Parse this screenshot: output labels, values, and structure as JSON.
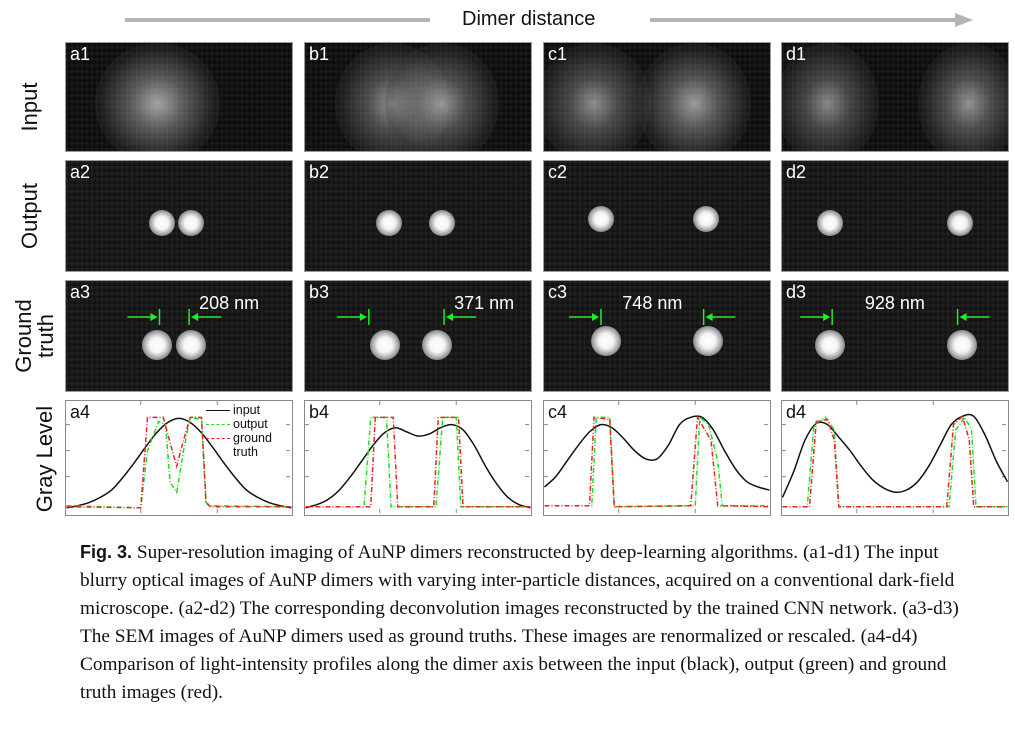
{
  "header": {
    "title": "Dimer distance"
  },
  "row_labels": {
    "input": "Input",
    "output": "Output",
    "ground_line1": "Ground",
    "ground_line2": "truth",
    "gray": "Gray Level"
  },
  "panels": {
    "a1": "a1",
    "b1": "b1",
    "c1": "c1",
    "d1": "d1",
    "a2": "a2",
    "b2": "b2",
    "c2": "c2",
    "d2": "d2",
    "a3": "a3",
    "b3": "b3",
    "c3": "c3",
    "d3": "d3",
    "a4": "a4",
    "b4": "b4",
    "c4": "c4",
    "d4": "d4"
  },
  "distances": {
    "a": "208 nm",
    "b": "371 nm",
    "c": "748 nm",
    "d": "928 nm"
  },
  "legend": {
    "input": "input",
    "output": "output",
    "ground1": "ground",
    "ground2": "truth"
  },
  "colors": {
    "input": "#111111",
    "output": "#22dd22",
    "ground_truth": "#ee2222",
    "annotation": "#22ee22"
  },
  "chart_data": [
    {
      "type": "line",
      "panel": "a4",
      "ylabel": "Gray Level",
      "xlim": [
        0,
        1
      ],
      "ylim": [
        0,
        1
      ],
      "series": [
        {
          "name": "input",
          "x_step": 0.05,
          "values": [
            0.05,
            0.07,
            0.1,
            0.15,
            0.22,
            0.34,
            0.48,
            0.63,
            0.77,
            0.87,
            0.91,
            0.87,
            0.77,
            0.63,
            0.48,
            0.34,
            0.22,
            0.15,
            0.1,
            0.07,
            0.05
          ]
        },
        {
          "name": "output",
          "points": [
            [
              0,
              0.07
            ],
            [
              0.33,
              0.05
            ],
            [
              0.36,
              0.6
            ],
            [
              0.41,
              0.88
            ],
            [
              0.44,
              0.85
            ],
            [
              0.46,
              0.3
            ],
            [
              0.49,
              0.2
            ],
            [
              0.52,
              0.6
            ],
            [
              0.55,
              0.92
            ],
            [
              0.6,
              0.9
            ],
            [
              0.62,
              0.1
            ],
            [
              0.64,
              0.07
            ],
            [
              1,
              0.06
            ]
          ]
        },
        {
          "name": "ground truth",
          "points": [
            [
              0,
              0.06
            ],
            [
              0.33,
              0.05
            ],
            [
              0.36,
              0.92
            ],
            [
              0.43,
              0.92
            ],
            [
              0.47,
              0.6
            ],
            [
              0.49,
              0.45
            ],
            [
              0.52,
              0.7
            ],
            [
              0.55,
              0.92
            ],
            [
              0.6,
              0.92
            ],
            [
              0.62,
              0.1
            ],
            [
              0.64,
              0.06
            ],
            [
              1,
              0.06
            ]
          ]
        }
      ]
    },
    {
      "type": "line",
      "panel": "b4",
      "xlim": [
        0,
        1
      ],
      "ylim": [
        0,
        1
      ],
      "series": [
        {
          "name": "input",
          "x_step": 0.05,
          "values": [
            0.05,
            0.08,
            0.13,
            0.22,
            0.35,
            0.5,
            0.65,
            0.77,
            0.82,
            0.78,
            0.74,
            0.76,
            0.82,
            0.85,
            0.8,
            0.65,
            0.45,
            0.28,
            0.15,
            0.08,
            0.05
          ]
        },
        {
          "name": "output",
          "points": [
            [
              0,
              0.06
            ],
            [
              0.26,
              0.06
            ],
            [
              0.29,
              0.92
            ],
            [
              0.36,
              0.92
            ],
            [
              0.38,
              0.06
            ],
            [
              0.58,
              0.06
            ],
            [
              0.61,
              0.92
            ],
            [
              0.67,
              0.92
            ],
            [
              0.69,
              0.06
            ],
            [
              1,
              0.06
            ]
          ]
        },
        {
          "name": "ground truth",
          "points": [
            [
              0,
              0.06
            ],
            [
              0.29,
              0.06
            ],
            [
              0.31,
              0.92
            ],
            [
              0.39,
              0.92
            ],
            [
              0.41,
              0.06
            ],
            [
              0.57,
              0.06
            ],
            [
              0.59,
              0.92
            ],
            [
              0.68,
              0.92
            ],
            [
              0.7,
              0.06
            ],
            [
              1,
              0.06
            ]
          ]
        }
      ]
    },
    {
      "type": "line",
      "panel": "c4",
      "xlim": [
        0,
        1
      ],
      "ylim": [
        0,
        1
      ],
      "series": [
        {
          "name": "input",
          "x_step": 0.05,
          "values": [
            0.25,
            0.35,
            0.5,
            0.65,
            0.78,
            0.85,
            0.82,
            0.72,
            0.6,
            0.52,
            0.52,
            0.65,
            0.85,
            0.92,
            0.92,
            0.8,
            0.6,
            0.42,
            0.3,
            0.25,
            0.22
          ]
        },
        {
          "name": "output",
          "points": [
            [
              0,
              0.07
            ],
            [
              0.21,
              0.07
            ],
            [
              0.23,
              0.92
            ],
            [
              0.29,
              0.92
            ],
            [
              0.31,
              0.06
            ],
            [
              0.67,
              0.07
            ],
            [
              0.69,
              0.92
            ],
            [
              0.73,
              0.85
            ],
            [
              0.77,
              0.5
            ],
            [
              0.79,
              0.07
            ],
            [
              1,
              0.07
            ]
          ]
        },
        {
          "name": "ground truth",
          "points": [
            [
              0,
              0.07
            ],
            [
              0.2,
              0.07
            ],
            [
              0.22,
              0.92
            ],
            [
              0.29,
              0.9
            ],
            [
              0.31,
              0.06
            ],
            [
              0.65,
              0.07
            ],
            [
              0.68,
              0.92
            ],
            [
              0.74,
              0.7
            ],
            [
              0.77,
              0.07
            ],
            [
              1,
              0.06
            ]
          ]
        }
      ]
    },
    {
      "type": "line",
      "panel": "d4",
      "xlim": [
        0,
        1
      ],
      "ylim": [
        0,
        1
      ],
      "series": [
        {
          "name": "input",
          "x_step": 0.05,
          "values": [
            0.15,
            0.4,
            0.7,
            0.86,
            0.85,
            0.73,
            0.6,
            0.45,
            0.32,
            0.24,
            0.2,
            0.22,
            0.3,
            0.45,
            0.65,
            0.85,
            0.93,
            0.93,
            0.75,
            0.5,
            0.3
          ]
        },
        {
          "name": "output",
          "points": [
            [
              0,
              0.06
            ],
            [
              0.11,
              0.06
            ],
            [
              0.14,
              0.85
            ],
            [
              0.19,
              0.92
            ],
            [
              0.23,
              0.8
            ],
            [
              0.25,
              0.06
            ],
            [
              0.74,
              0.06
            ],
            [
              0.77,
              0.8
            ],
            [
              0.81,
              0.92
            ],
            [
              0.84,
              0.8
            ],
            [
              0.86,
              0.06
            ],
            [
              1,
              0.06
            ]
          ]
        },
        {
          "name": "ground truth",
          "points": [
            [
              0,
              0.06
            ],
            [
              0.12,
              0.06
            ],
            [
              0.15,
              0.88
            ],
            [
              0.2,
              0.9
            ],
            [
              0.23,
              0.7
            ],
            [
              0.25,
              0.06
            ],
            [
              0.73,
              0.06
            ],
            [
              0.76,
              0.85
            ],
            [
              0.8,
              0.93
            ],
            [
              0.83,
              0.7
            ],
            [
              0.85,
              0.06
            ],
            [
              1,
              0.06
            ]
          ]
        }
      ]
    }
  ],
  "caption": {
    "fig_no": "Fig. 3.",
    "text": "Super-resolution imaging of AuNP dimers reconstructed by deep-learning algorithms. (a1-d1) The input blurry optical images of AuNP dimers with varying inter-particle distances, acquired on a conventional dark-field microscope. (a2-d2) The corresponding deconvolution images reconstructed by the trained CNN network. (a3-d3) The SEM images of AuNP dimers used as ground truths. These images are renormalized or rescaled. (a4-d4) Comparison of light-intensity profiles along the dimer axis between the input (black), output (green) and ground truth images (red)."
  }
}
